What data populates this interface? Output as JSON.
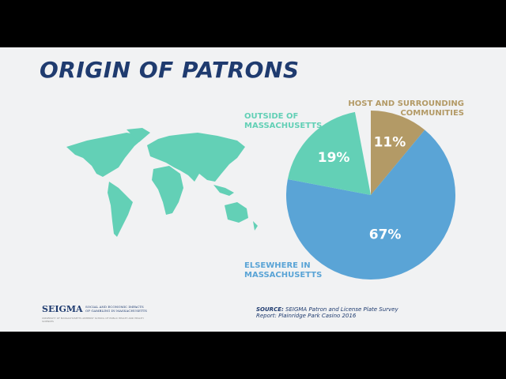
{
  "chart_data": {
    "type": "pie",
    "title": "ORIGIN OF PATRONS",
    "categories": [
      "HOST AND SURROUNDING COMMUNITIES",
      "ELSEWHERE IN MASSACHUSETTS",
      "OUTSIDE OF MASSACHUSETTS"
    ],
    "values": [
      11,
      67,
      19
    ],
    "value_labels": [
      "11%",
      "67%",
      "19%"
    ],
    "colors": [
      "#b39a66",
      "#5aa4d6",
      "#63d0b6"
    ]
  },
  "source": {
    "label": "SOURCE:",
    "text": "SEIGMA Patron and License Plate Survey Report: Plainridge Park Casino 2016"
  },
  "logo": {
    "name": "SEIGMA",
    "tagline": "SOCIAL AND ECONOMIC IMPACTS OF GAMBLING IN MASSACHUSETTS",
    "affiliation": "UNIVERSITY OF MASSACHUSETTS AMHERST SCHOOL OF PUBLIC HEALTH AND HEALTH SCIENCES"
  }
}
